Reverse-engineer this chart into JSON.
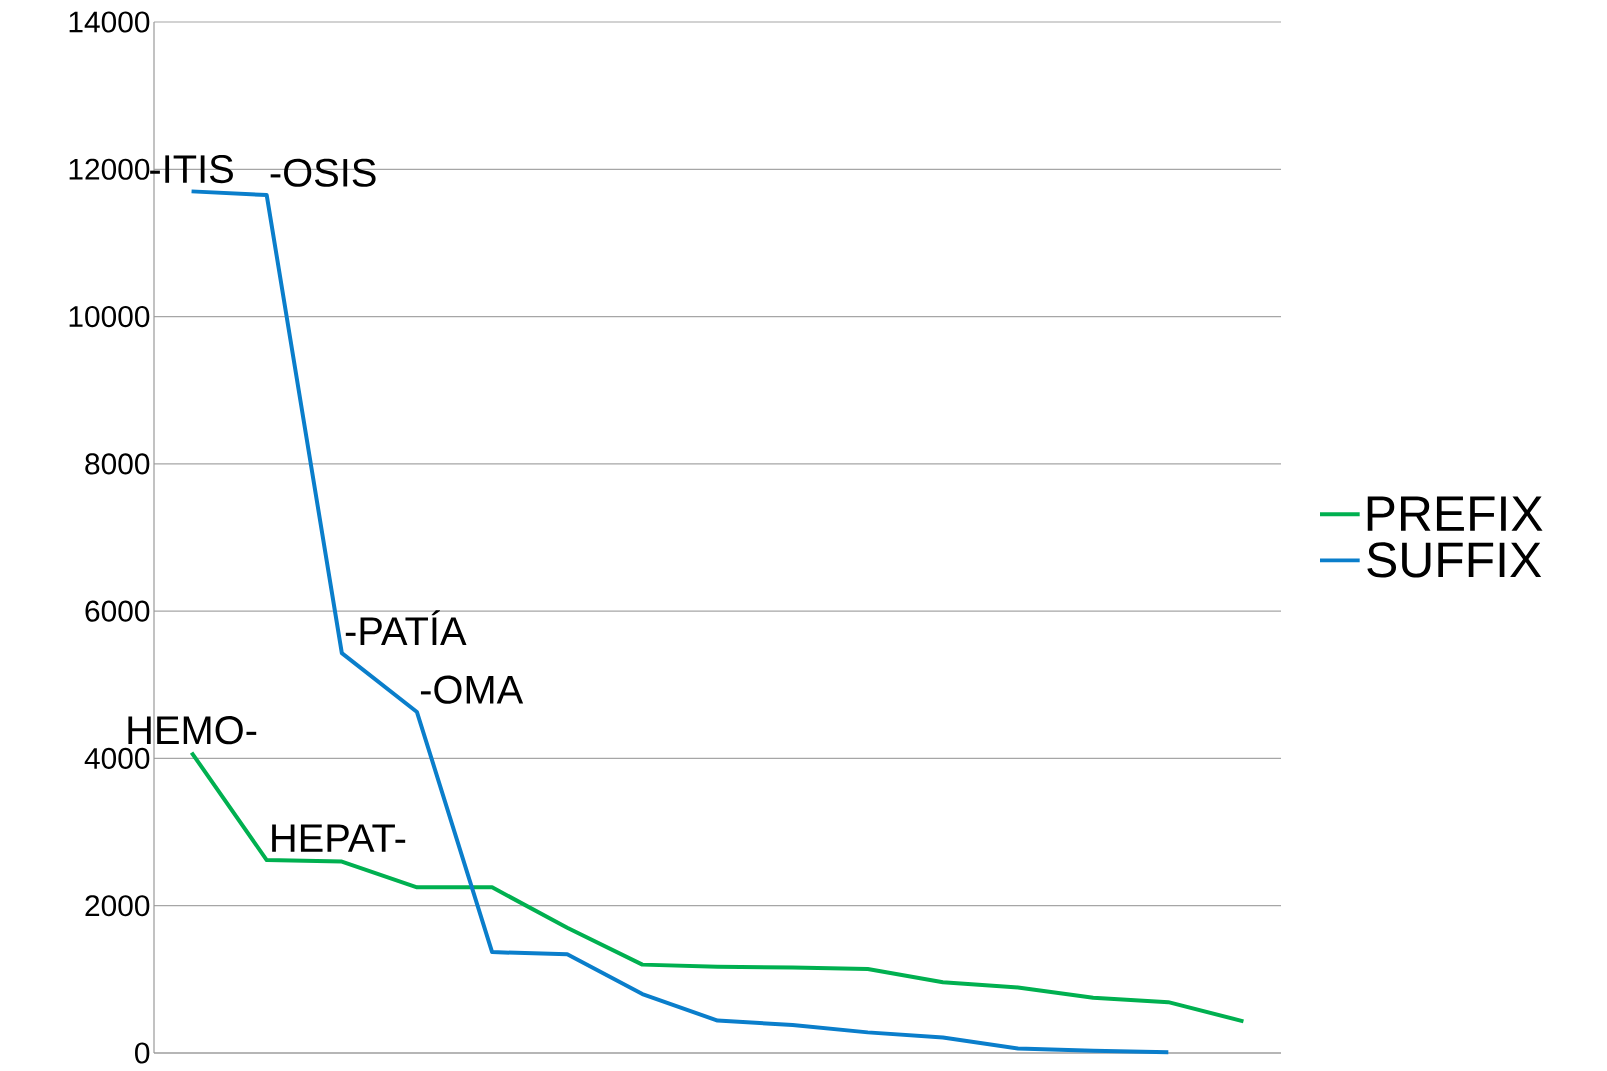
{
  "chart_data": {
    "type": "line",
    "categories": [
      null,
      null,
      null,
      null,
      null,
      null,
      null,
      null,
      null,
      null,
      null,
      null,
      null,
      null,
      null
    ],
    "series": [
      {
        "name": "PREFIX",
        "color": "#00b050",
        "values": [
          4080,
          2620,
          2600,
          2250,
          2250,
          1700,
          1200,
          1170,
          1160,
          1140,
          960,
          890,
          750,
          690,
          430
        ],
        "value_labels": [
          "HEMO-",
          "HEPAT-",
          null,
          null,
          null,
          null,
          null,
          null,
          null,
          null,
          null,
          null,
          null,
          null,
          null
        ]
      },
      {
        "name": "SUFFIX",
        "color": "#0a7ecb",
        "values": [
          11700,
          11650,
          5430,
          4630,
          1370,
          1340,
          800,
          440,
          380,
          280,
          210,
          60,
          30,
          10,
          null
        ],
        "value_labels": [
          "-ITIS",
          "-OSIS",
          "-PATÍA",
          "-OMA",
          null,
          null,
          null,
          null,
          null,
          null,
          null,
          null,
          null,
          null,
          null
        ]
      }
    ],
    "ylim": [
      0,
      14000
    ],
    "yticks": [
      0,
      2000,
      4000,
      6000,
      8000,
      10000,
      12000,
      14000
    ],
    "grid": "y",
    "legend": "right",
    "tick_labels": "y",
    "marker": "none",
    "line_style": "solid"
  }
}
